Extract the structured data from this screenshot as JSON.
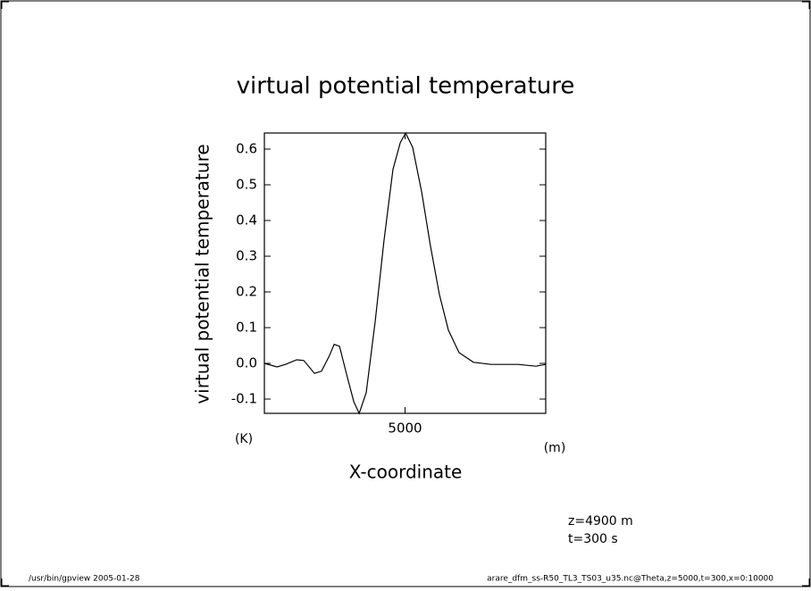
{
  "chart_data": {
    "type": "line",
    "title": "virtual potential temperature",
    "y_label": "virtual potential temperature",
    "y_unit": "(K)",
    "x_label": "X-coordinate",
    "x_unit": "(m)",
    "annotations": [
      "z=4900 m",
      "t=300 s"
    ],
    "footer_left": "/usr/bin/gpview  2005-01-28",
    "footer_right": "arare_dfm_ss-R50_TL3_TS03_u35.nc@Theta,z=5000,t=300,x=0:10000",
    "xlim": [
      0,
      10000
    ],
    "xticks": [
      5000
    ],
    "ylim": [
      -0.14,
      0.645
    ],
    "yticks": [
      -0.1,
      {
        "value": 0,
        "label": "0.0"
      },
      0.1,
      0.2,
      0.3,
      0.4,
      0.5,
      0.6
    ],
    "series": [
      {
        "color": "#000000",
        "x": [
          0,
          450,
          750,
          1150,
          1400,
          1780,
          2030,
          2290,
          2480,
          2670,
          2920,
          3180,
          3370,
          3620,
          3940,
          4250,
          4570,
          4830,
          5020,
          5270,
          5590,
          5900,
          6220,
          6540,
          6920,
          7430,
          8060,
          9020,
          9650,
          10000
        ],
        "values": [
          0.0,
          -0.01,
          -0.003,
          0.01,
          0.008,
          -0.028,
          -0.022,
          0.018,
          0.053,
          0.048,
          -0.03,
          -0.108,
          -0.14,
          -0.082,
          0.118,
          0.343,
          0.543,
          0.618,
          0.645,
          0.605,
          0.48,
          0.33,
          0.193,
          0.093,
          0.03,
          0.003,
          -0.003,
          -0.003,
          -0.008,
          -0.003
        ]
      }
    ]
  }
}
